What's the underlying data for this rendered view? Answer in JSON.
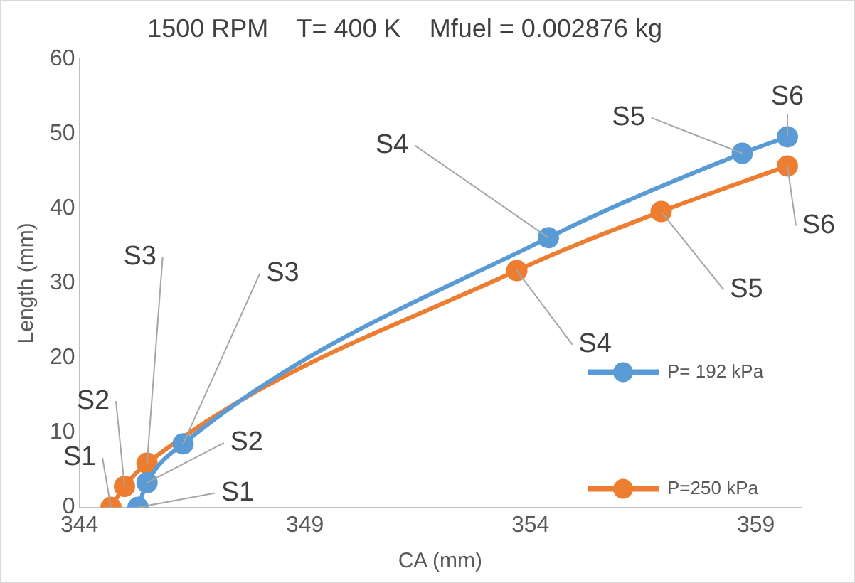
{
  "chart_data": {
    "type": "line",
    "title": "1500 RPM    T= 400 K    Mfuel = 0.002876 kg",
    "xlabel": "CA (mm)",
    "ylabel": "Length (mm)",
    "xlim": [
      344,
      360
    ],
    "xticks": [
      344,
      349,
      354,
      359
    ],
    "ylim": [
      0,
      60
    ],
    "yticks": [
      0,
      10,
      20,
      30,
      40,
      50,
      60
    ],
    "grid": false,
    "legend": "bottom right",
    "marker": "circle",
    "line_style": "solid",
    "series": [
      {
        "name": "P= 192 kPa",
        "color": "#5b9bd5",
        "x": [
          345.3,
          345.5,
          346.3,
          354.4,
          358.7,
          359.7
        ],
        "values": [
          0,
          3.3,
          8.5,
          36.1,
          47.4,
          49.6
        ]
      },
      {
        "name": "P=250 kPa",
        "color": "#ed7d31",
        "x": [
          344.7,
          345.0,
          345.5,
          353.7,
          356.9,
          359.7
        ],
        "values": [
          0,
          2.8,
          5.9,
          31.7,
          39.6,
          45.7
        ]
      }
    ],
    "annotations": [
      {
        "text": "S1",
        "x": 345.3,
        "y": 0
      },
      {
        "text": "S2",
        "x": 345.5,
        "y": 3.3
      },
      {
        "text": "S3",
        "x": 346.3,
        "y": 8.5
      },
      {
        "text": "S4",
        "x": 354.4,
        "y": 36.1
      },
      {
        "text": "S5",
        "x": 358.7,
        "y": 47.4
      },
      {
        "text": "S6",
        "x": 359.7,
        "y": 49.6
      },
      {
        "text": "S1",
        "x": 344.7,
        "y": 0
      },
      {
        "text": "S2",
        "x": 345.0,
        "y": 2.8
      },
      {
        "text": "S3",
        "x": 345.5,
        "y": 5.9
      },
      {
        "text": "S4",
        "x": 353.7,
        "y": 31.7
      },
      {
        "text": "S5",
        "x": 356.9,
        "y": 39.6
      },
      {
        "text": "S6",
        "x": 359.7,
        "y": 45.7
      }
    ]
  }
}
